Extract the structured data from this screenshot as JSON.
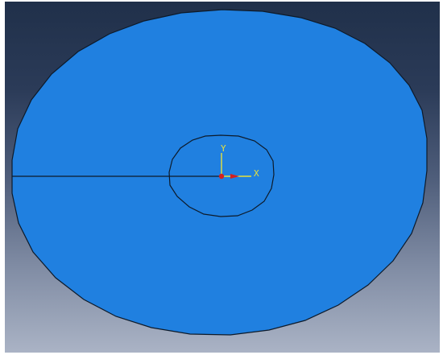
{
  "viewport": {
    "colors": {
      "background_top": "#20304a",
      "background_bottom": "#aab3c5",
      "part_fill": "#2080e0",
      "edge": "#0d1a2a",
      "triad_axis": "#e8e03a",
      "origin_marker": "#d42020"
    }
  },
  "model": {
    "shape": "annulus-disk",
    "partition_line": "radial-seam-left",
    "inner_hole": "circular-partition"
  },
  "triad": {
    "y_label": "Y",
    "x_label": "X",
    "icon": "coordinate-triad-icon"
  }
}
